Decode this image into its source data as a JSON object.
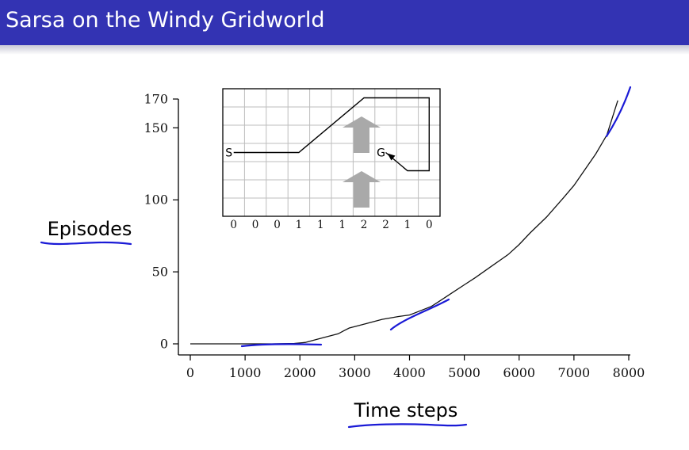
{
  "slide": {
    "title": "Sarsa on the Windy Gridworld"
  },
  "chart_data": {
    "type": "line",
    "xlabel": "Time steps",
    "ylabel": "Episodes",
    "xlim": [
      0,
      8000
    ],
    "ylim": [
      0,
      170
    ],
    "xticks": [
      0,
      1000,
      2000,
      3000,
      4000,
      5000,
      6000,
      7000,
      8000
    ],
    "yticks": [
      0,
      50,
      100,
      150,
      170
    ],
    "grid": false,
    "series": [
      {
        "x": [
          0,
          500,
          1000,
          1500,
          1900,
          2100,
          2300,
          2500,
          2700,
          2800,
          2900,
          3000,
          3200,
          3500,
          3800,
          4000,
          4200,
          4400,
          4600,
          4800,
          5000,
          5200,
          5500,
          5800,
          6000,
          6200,
          6500,
          6800,
          7000,
          7200,
          7400,
          7600,
          7800
        ],
        "y": [
          0,
          0,
          0,
          0,
          0.3,
          1,
          3,
          5,
          7,
          9,
          11,
          12,
          14,
          17,
          19,
          20,
          23,
          26,
          31,
          36,
          41,
          46,
          54,
          62,
          69,
          77,
          88,
          101,
          110,
          121,
          132,
          145,
          169
        ]
      }
    ]
  },
  "inset": {
    "wind_values": [
      "0",
      "0",
      "0",
      "1",
      "1",
      "1",
      "2",
      "2",
      "1",
      "0"
    ],
    "start_label": "S",
    "goal_label": "G",
    "arrow_color": "#a9a9a9",
    "grid_color": "#bdbdbd",
    "path_color": "#000000"
  },
  "annotations": {
    "ink_color": "#1a1ad6"
  }
}
